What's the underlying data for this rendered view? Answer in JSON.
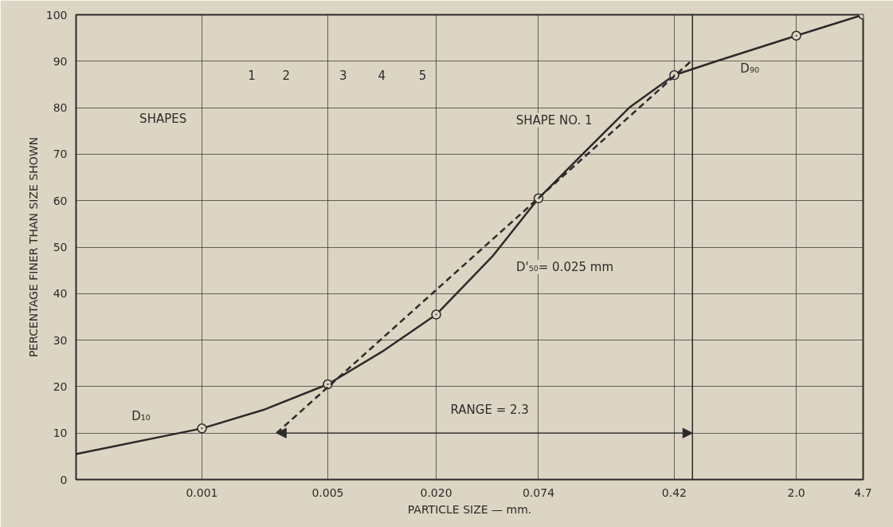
{
  "chart_data": {
    "type": "line",
    "xlabel": "PARTICLE SIZE — mm.",
    "ylabel": "PERCENTAGE FINER THAN SIZE SHOWN",
    "log": "x",
    "xlim": [
      0.0002,
      4.7
    ],
    "ylim": [
      0,
      100
    ],
    "xticks": [
      0.001,
      0.005,
      {
        "value": 0.02,
        "label": "0.020"
      },
      0.074,
      0.42,
      {
        "value": 2,
        "label": "2.0"
      },
      4.7
    ],
    "yticks": [
      0,
      10,
      20,
      30,
      40,
      50,
      60,
      70,
      80,
      90,
      100
    ],
    "grid": true,
    "series": [
      {
        "color": "#2b2b2b",
        "line_style": "solid",
        "marker": "none",
        "x": [
          0.0002,
          0.001,
          0.0022,
          0.005,
          0.01,
          0.02,
          0.041,
          0.074,
          0.13,
          0.236,
          0.42,
          0.72,
          2,
          4.7
        ],
        "values": [
          5.5,
          11,
          15,
          20.5,
          27.5,
          35.5,
          48,
          60.5,
          70,
          80,
          87,
          90,
          95.5,
          100
        ]
      },
      {
        "type": "scatter",
        "color": "#2b2b2b",
        "marker": "circle",
        "x": [
          0.001,
          0.005,
          0.02,
          0.074,
          0.42,
          2,
          4.7
        ],
        "values": [
          11,
          20.5,
          35.5,
          60.5,
          87,
          95.5,
          100
        ]
      },
      {
        "type": "line",
        "color": "#2b2b2b",
        "line_style": "dashed",
        "marker": "none",
        "x": [
          0.0026,
          0.52
        ],
        "values": [
          10,
          90
        ]
      }
    ],
    "ref_lines": [
      {
        "axis": "x",
        "value": 0.53,
        "color": "#2b2b2b"
      }
    ],
    "annotations": [
      {
        "text": "D₁₀",
        "x": 0.00075,
        "y": 10
      },
      {
        "text": "D₉₀",
        "x": 0.72,
        "y": 90
      },
      {
        "text": "D'₅₀= 0.025 mm",
        "x": 0.041,
        "y": 48
      },
      {
        "text": "SHAPE NO. 1",
        "x": 0.2,
        "y": 77.5
      },
      "RANGE = 2.3",
      "SHAPES",
      "1",
      "2",
      "3",
      "4",
      "5"
    ]
  }
}
